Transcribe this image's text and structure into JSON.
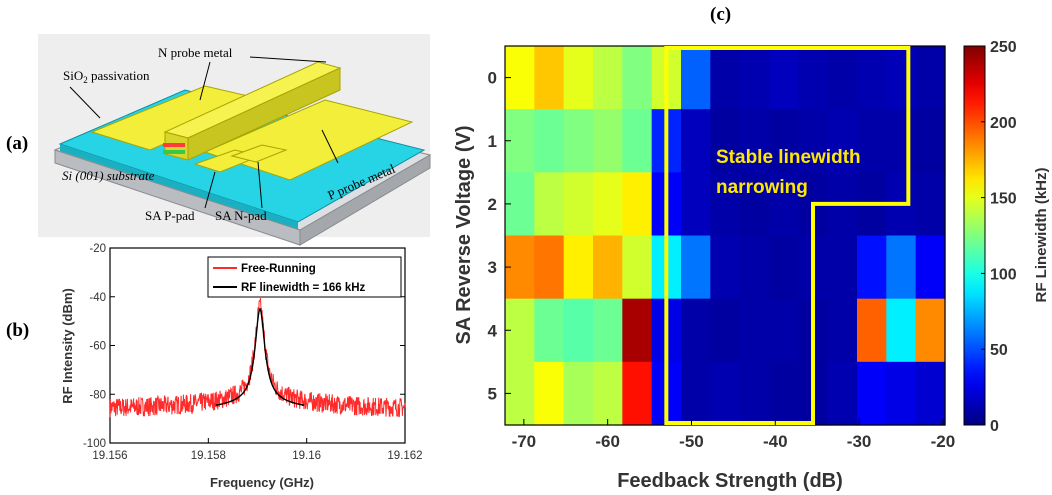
{
  "panel_labels": {
    "a": "(a)",
    "b": "(b)",
    "c": "(c)"
  },
  "device_labels": {
    "n_probe": "N probe metal",
    "sio2_prefix": "SiO",
    "sio2_sub": "2",
    "sio2_suffix": " passivation",
    "substrate": "Si (001) substrate",
    "p_probe": "P probe metal",
    "sa_ppad": "SA P-pad",
    "sa_npad": "SA N-pad"
  },
  "colors": {
    "passivation": "#26d4e6",
    "metal": "#f2ee3a",
    "substrate": "#d9dce0",
    "trace": "#ff2a2a",
    "fit": "#000000",
    "outline": "#ffff00"
  },
  "chart_data": [
    {
      "id": "b",
      "type": "line",
      "xlabel": "Frequency (GHz)",
      "ylabel": "RF Intensity (dBm)",
      "xlim": [
        19.156,
        19.162
      ],
      "ylim": [
        -100,
        -20
      ],
      "xticks": [
        19.156,
        19.158,
        19.16,
        19.162
      ],
      "xtick_labels": [
        "19.156",
        "19.158",
        "19.16",
        "19.162"
      ],
      "yticks": [
        -100,
        -80,
        -60,
        -40,
        -20
      ],
      "ytick_labels": [
        "-100",
        "-80",
        "-60",
        "-40",
        "-20"
      ],
      "legend_position": "top-right",
      "series": [
        {
          "name": "Free-Running",
          "color": "#ff2a2a",
          "center": 19.15905,
          "peak": -50,
          "floor": -86,
          "noise": 4
        },
        {
          "name": "RF linewidth = 166 kHz",
          "color": "#000000",
          "center": 19.15905,
          "peak": -51,
          "floor": -88
        }
      ]
    },
    {
      "id": "c",
      "type": "heatmap",
      "title": "(c)",
      "xlabel": "Feedback Strength (dB)",
      "ylabel": "SA Reverse Voltage (V)",
      "x_centers": [
        -70.5,
        -67,
        -63.5,
        -60,
        -56.5,
        -53,
        -49.5,
        -46,
        -42.5,
        -39,
        -35.5,
        -32,
        -28.5,
        -25,
        -21.5
      ],
      "y_centers": [
        0,
        1,
        2,
        3,
        4,
        5
      ],
      "xlim": [
        -72.25,
        -19.75
      ],
      "ylim": [
        5.5,
        -0.5
      ],
      "xticks": [
        -70,
        -60,
        -50,
        -40,
        -30,
        -20
      ],
      "xtick_labels": [
        "-70",
        "-60",
        "-50",
        "-40",
        "-30",
        "-20"
      ],
      "yticks": [
        0,
        1,
        2,
        3,
        4,
        5
      ],
      "ytick_labels": [
        "0",
        "1",
        "2",
        "3",
        "4",
        "5"
      ],
      "values": [
        [
          155,
          170,
          150,
          140,
          125,
          145,
          55,
          10,
          12,
          15,
          12,
          10,
          12,
          14,
          10
        ],
        [
          125,
          120,
          125,
          130,
          120,
          40,
          15,
          8,
          10,
          8,
          10,
          12,
          10,
          10,
          8
        ],
        [
          120,
          140,
          145,
          150,
          160,
          30,
          15,
          10,
          8,
          10,
          8,
          10,
          8,
          12,
          10
        ],
        [
          185,
          190,
          160,
          175,
          145,
          90,
          60,
          12,
          10,
          8,
          10,
          10,
          35,
          60,
          30
        ],
        [
          140,
          120,
          115,
          120,
          240,
          25,
          10,
          8,
          10,
          10,
          8,
          10,
          195,
          90,
          185
        ],
        [
          140,
          155,
          135,
          140,
          215,
          30,
          10,
          12,
          10,
          8,
          8,
          12,
          30,
          25,
          20
        ]
      ],
      "annotation": [
        "Stable linewidth",
        "narrowing"
      ],
      "colorbar": {
        "label": "RF Linewidth (kHz)",
        "range": [
          0,
          250
        ],
        "ticks": [
          0,
          50,
          100,
          150,
          200,
          250
        ],
        "tick_labels": [
          "0",
          "50",
          "100",
          "150",
          "200",
          "250"
        ],
        "colormap": "jet"
      }
    }
  ]
}
